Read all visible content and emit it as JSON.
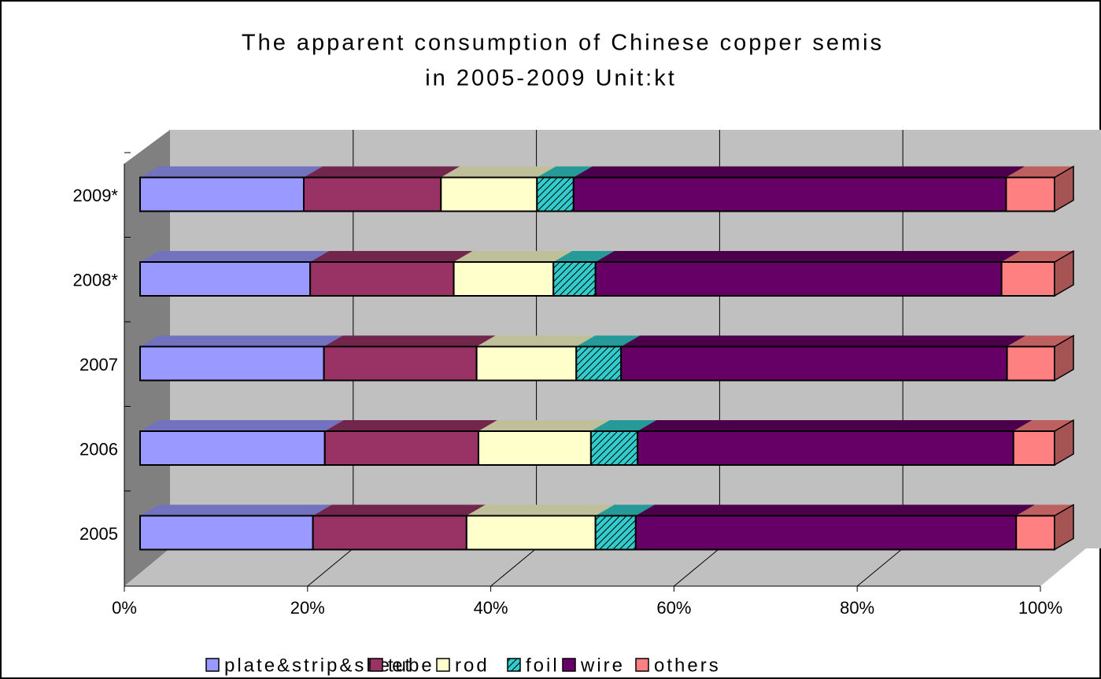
{
  "chart_data": {
    "type": "stacked_bar_100_horizontal_3d",
    "title": "The apparent consumption of Chinese copper semis",
    "subtitle": "in 2005-2009 Unit:kt",
    "categories": [
      "2005",
      "2006",
      "2007",
      "2008*",
      "2009*"
    ],
    "series": [
      {
        "name": "plate&strip&sheet",
        "color": "#9999ff",
        "values": [
          18.9,
          20.2,
          20.1,
          18.6,
          17.9
        ]
      },
      {
        "name": "tube",
        "color": "#993366",
        "values": [
          16.8,
          16.8,
          16.7,
          15.7,
          15.0
        ]
      },
      {
        "name": "rod",
        "color": "#ffffcc",
        "values": [
          14.1,
          12.3,
          10.9,
          10.9,
          10.5
        ]
      },
      {
        "name": "foil",
        "color": "#33cccc",
        "hatched": true,
        "values": [
          4.4,
          5.1,
          4.9,
          4.6,
          4.0
        ]
      },
      {
        "name": "wire",
        "color": "#660066",
        "values": [
          41.6,
          41.1,
          42.2,
          44.4,
          47.3
        ]
      },
      {
        "name": "others",
        "color": "#ff8080",
        "values": [
          4.2,
          4.5,
          5.2,
          5.8,
          5.3
        ]
      }
    ],
    "xlim": [
      0,
      100
    ],
    "xticks": [
      {
        "value": 0,
        "label": "0%"
      },
      {
        "value": 20,
        "label": "20%"
      },
      {
        "value": 40,
        "label": "40%"
      },
      {
        "value": 60,
        "label": "60%"
      },
      {
        "value": 80,
        "label": "80%"
      },
      {
        "value": 100,
        "label": "100%"
      }
    ],
    "grid": true,
    "legend": "bottom"
  }
}
